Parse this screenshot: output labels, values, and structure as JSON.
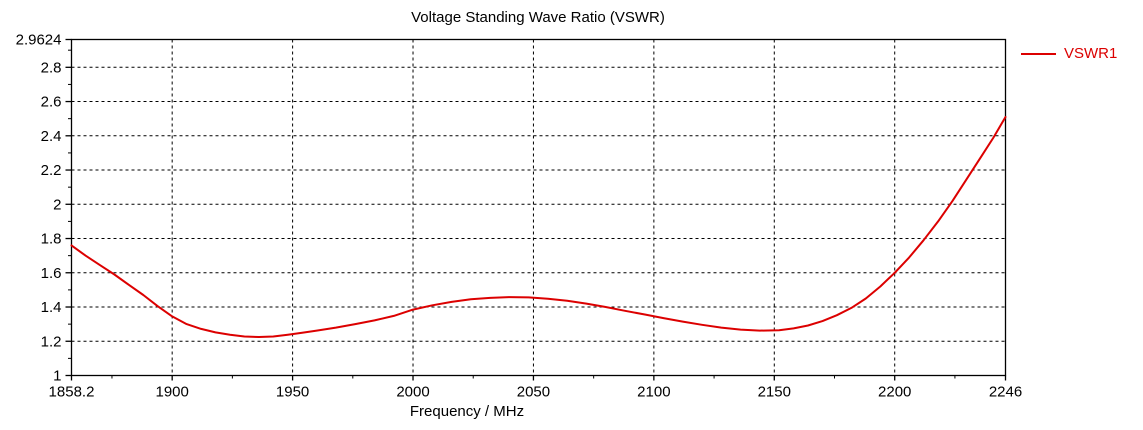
{
  "window": {
    "background": "#ffffff"
  },
  "colors": {
    "axis": "#000000",
    "grid": "#000000",
    "text": "#000000",
    "series1": "#dc0000",
    "background": "#ffffff"
  },
  "chart_data": {
    "type": "line",
    "title": "Voltage Standing Wave Ratio (VSWR)",
    "xlabel": "Frequency / MHz",
    "ylabel": "",
    "x_range": [
      1858.2,
      2246
    ],
    "y_range": [
      1,
      2.9624
    ],
    "x_tick_values": [
      1858.2,
      1900,
      1950,
      2000,
      2050,
      2100,
      2150,
      2200,
      2246
    ],
    "x_tick_labels": [
      "1858.2",
      "1900",
      "1950",
      "2000",
      "2050",
      "2100",
      "2150",
      "2200",
      "2246"
    ],
    "x_gridline_values": [
      1900,
      1950,
      2000,
      2050,
      2100,
      2150,
      2200
    ],
    "x_minor_tick_values": [
      1875,
      1925,
      1975,
      2025,
      2075,
      2125,
      2175,
      2225
    ],
    "y_tick_values": [
      1,
      1.2,
      1.4,
      1.6,
      1.8,
      2,
      2.2,
      2.4,
      2.6,
      2.8,
      2.9624
    ],
    "y_tick_labels": [
      "1",
      "1.2",
      "1.4",
      "1.6",
      "1.8",
      "2",
      "2.2",
      "2.4",
      "2.6",
      "2.8",
      "2.9624"
    ],
    "y_gridline_values": [
      1.2,
      1.4,
      1.6,
      1.8,
      2,
      2.2,
      2.4,
      2.6,
      2.8
    ],
    "y_minor_tick_values": [
      1.1,
      1.3,
      1.5,
      1.7,
      1.9,
      2.1,
      2.3,
      2.5,
      2.7,
      2.9
    ],
    "grid": {
      "style": "dashed",
      "color": "#000000"
    },
    "legend": {
      "position": "top-right-outside"
    },
    "series": [
      {
        "name": "VSWR1",
        "color": "#dc0000",
        "points": [
          [
            1858.2,
            1.76
          ],
          [
            1864,
            1.7
          ],
          [
            1870,
            1.645
          ],
          [
            1876,
            1.59
          ],
          [
            1882,
            1.53
          ],
          [
            1888,
            1.47
          ],
          [
            1894,
            1.405
          ],
          [
            1900,
            1.345
          ],
          [
            1906,
            1.3
          ],
          [
            1912,
            1.272
          ],
          [
            1918,
            1.252
          ],
          [
            1924,
            1.238
          ],
          [
            1930,
            1.228
          ],
          [
            1936,
            1.225
          ],
          [
            1942,
            1.228
          ],
          [
            1948,
            1.238
          ],
          [
            1954,
            1.25
          ],
          [
            1960,
            1.262
          ],
          [
            1968,
            1.28
          ],
          [
            1976,
            1.3
          ],
          [
            1984,
            1.322
          ],
          [
            1992,
            1.348
          ],
          [
            2000,
            1.385
          ],
          [
            2008,
            1.41
          ],
          [
            2016,
            1.43
          ],
          [
            2024,
            1.445
          ],
          [
            2032,
            1.453
          ],
          [
            2040,
            1.458
          ],
          [
            2048,
            1.456
          ],
          [
            2056,
            1.448
          ],
          [
            2064,
            1.437
          ],
          [
            2072,
            1.42
          ],
          [
            2080,
            1.4
          ],
          [
            2088,
            1.378
          ],
          [
            2096,
            1.357
          ],
          [
            2104,
            1.335
          ],
          [
            2112,
            1.315
          ],
          [
            2120,
            1.296
          ],
          [
            2128,
            1.28
          ],
          [
            2136,
            1.268
          ],
          [
            2144,
            1.262
          ],
          [
            2152,
            1.264
          ],
          [
            2158,
            1.275
          ],
          [
            2164,
            1.292
          ],
          [
            2170,
            1.318
          ],
          [
            2176,
            1.352
          ],
          [
            2182,
            1.395
          ],
          [
            2188,
            1.45
          ],
          [
            2194,
            1.52
          ],
          [
            2200,
            1.6
          ],
          [
            2206,
            1.69
          ],
          [
            2212,
            1.79
          ],
          [
            2218,
            1.9
          ],
          [
            2224,
            2.02
          ],
          [
            2230,
            2.15
          ],
          [
            2236,
            2.28
          ],
          [
            2241,
            2.39
          ],
          [
            2246,
            2.51
          ]
        ]
      }
    ]
  }
}
